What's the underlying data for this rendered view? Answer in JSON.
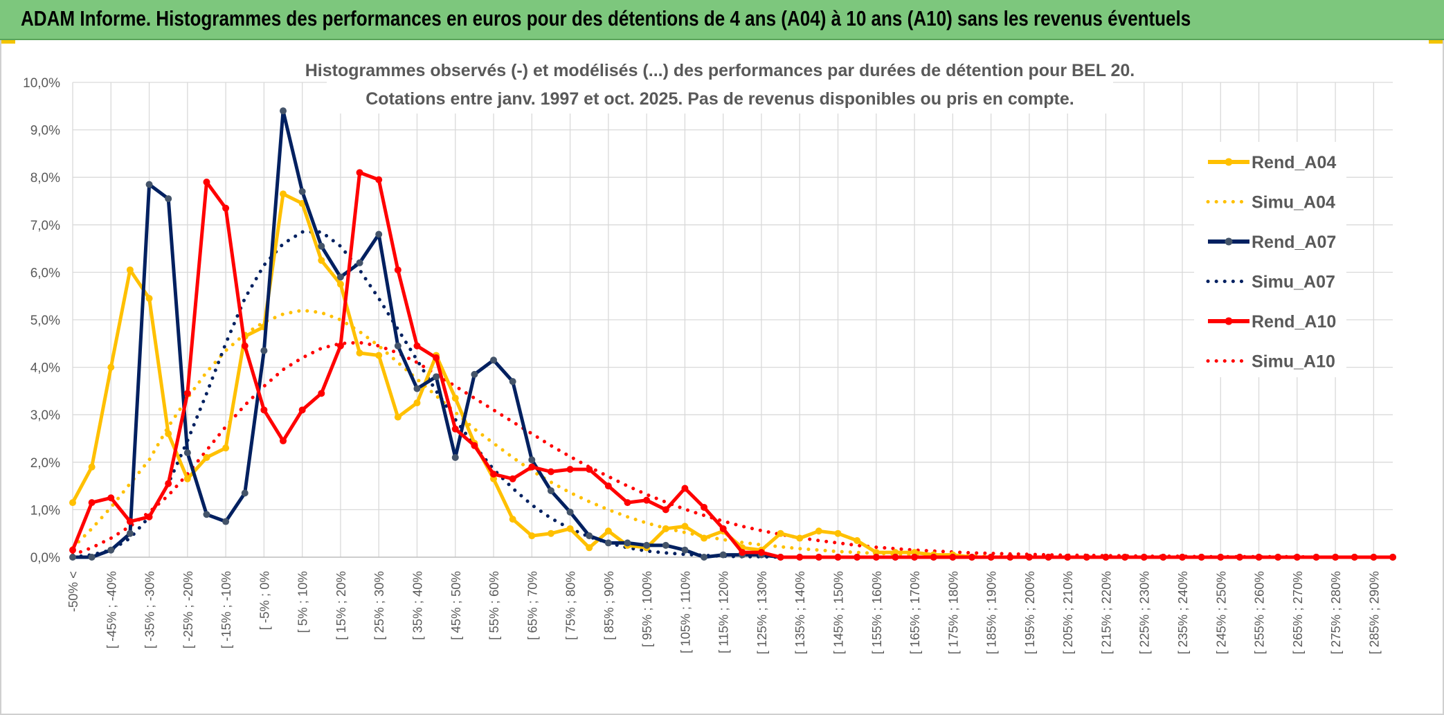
{
  "header": {
    "title": "ADAM Informe. Histogrammes des performances en euros pour des détentions de 4 ans (A04) à 10 ans (A10) sans les revenus éventuels"
  },
  "colors": {
    "banner": "#7dc77d",
    "A04": "#ffc000",
    "A07": "#002060",
    "A10": "#ff0000",
    "grid": "#d9d9d9",
    "text": "#595959"
  },
  "chart_data": {
    "type": "line",
    "title_lines": [
      "Histogrammes observés (-) et modélisés (...) des performances par durées de détention pour BEL 20.",
      "Cotations entre janv. 1997 et oct. 2025. Pas de revenus disponibles ou pris en compte."
    ],
    "y_ticks": [
      "0,0%",
      "1,0%",
      "2,0%",
      "3,0%",
      "4,0%",
      "5,0%",
      "6,0%",
      "7,0%",
      "8,0%",
      "9,0%",
      "10,0%"
    ],
    "ylim": [
      0,
      10
    ],
    "yunit": "%",
    "grid": true,
    "legend_position": "right",
    "x_labels": [
      "-50% <",
      "[ -45% ; -40%",
      "[ -35% ; -30%",
      "[ -25% ; -20%",
      "[ -15% ; -10%",
      "[ -5% ; 0%",
      "[ 5% ; 10%",
      "[ 15% ; 20%",
      "[ 25% ; 30%",
      "[ 35% ; 40%",
      "[ 45% ; 50%",
      "[ 55% ; 60%",
      "[ 65% ; 70%",
      "[ 75% ; 80%",
      "[ 85% ; 90%",
      "[ 95% ; 100%",
      "[ 105% ; 110%",
      "[ 115% ; 120%",
      "[ 125% ; 130%",
      "[ 135% ; 140%",
      "[ 145% ; 150%",
      "[ 155% ; 160%",
      "[ 165% ; 170%",
      "[ 175% ; 180%",
      "[ 185% ; 190%",
      "[ 195% ; 200%",
      "[ 205% ; 210%",
      "[ 215% ; 220%",
      "[ 225% ; 230%",
      "[ 235% ; 240%",
      "[ 245% ; 250%",
      "[ 255% ; 260%",
      "[ 265% ; 270%",
      "[ 275% ; 280%",
      "[ 285% ; 290%"
    ],
    "series": [
      {
        "name": "Rend_A04",
        "style": "solid",
        "color": "#ffc000",
        "values": [
          1.15,
          1.9,
          4.0,
          6.05,
          5.45,
          2.6,
          1.65,
          2.1,
          2.3,
          4.65,
          4.85,
          7.65,
          7.45,
          6.25,
          5.75,
          4.3,
          4.25,
          2.95,
          3.25,
          4.25,
          3.35,
          2.4,
          1.65,
          0.8,
          0.45,
          0.5,
          0.6,
          0.2,
          0.55,
          0.25,
          0.2,
          0.6,
          0.65,
          0.4,
          0.55,
          0.2,
          0.15,
          0.5,
          0.4,
          0.55,
          0.5,
          0.35,
          0.1,
          0.1,
          0.1,
          0.05,
          0.05,
          0.0,
          0.0,
          0.0,
          0.0,
          0.0,
          0.0,
          0.0,
          0.0,
          0.0,
          0.0,
          0.0,
          0.0,
          0.0,
          0.0,
          0.0,
          0.0,
          0.0,
          0.0,
          0.0,
          0.0,
          0.0,
          0.0,
          0.0
        ]
      },
      {
        "name": "Simu_A04",
        "style": "dotted",
        "color": "#ffc000",
        "values": [
          0.2,
          0.6,
          1.05,
          1.55,
          2.05,
          2.75,
          3.35,
          3.9,
          4.35,
          4.7,
          4.95,
          5.12,
          5.2,
          5.15,
          5.0,
          4.75,
          4.45,
          4.1,
          3.75,
          3.4,
          3.05,
          2.7,
          2.4,
          2.1,
          1.82,
          1.58,
          1.36,
          1.17,
          1.0,
          0.85,
          0.72,
          0.61,
          0.52,
          0.44,
          0.37,
          0.31,
          0.26,
          0.22,
          0.18,
          0.15,
          0.12,
          0.1,
          0.08,
          0.07,
          0.05,
          0.04,
          0.03,
          0.03,
          0.02,
          0.02,
          0.01,
          0.01,
          0.01,
          0.01,
          0.0,
          0.0,
          0.0,
          0.0,
          0.0,
          0.0,
          0.0,
          0.0,
          0.0,
          0.0,
          0.0,
          0.0,
          0.0,
          0.0,
          0.0,
          0.0
        ]
      },
      {
        "name": "Rend_A07",
        "style": "solid",
        "color": "#002060",
        "values": [
          0.0,
          0.0,
          0.15,
          0.5,
          7.85,
          7.55,
          2.2,
          0.9,
          0.75,
          1.35,
          4.35,
          9.4,
          7.7,
          6.55,
          5.9,
          6.2,
          6.8,
          4.45,
          3.55,
          3.8,
          2.1,
          3.85,
          4.15,
          3.7,
          2.05,
          1.4,
          0.95,
          0.45,
          0.3,
          0.3,
          0.25,
          0.25,
          0.15,
          0.0,
          0.05,
          0.05,
          0.05,
          0.0,
          0.0,
          0.0,
          0.0,
          0.0,
          0.0,
          0.0,
          0.0,
          0.0,
          0.0,
          0.0,
          0.0,
          0.0,
          0.0,
          0.0,
          0.0,
          0.0,
          0.0,
          0.0,
          0.0,
          0.0,
          0.0,
          0.0,
          0.0,
          0.0,
          0.0,
          0.0,
          0.0,
          0.0,
          0.0,
          0.0,
          0.0,
          0.0
        ]
      },
      {
        "name": "Simu_A07",
        "style": "dotted",
        "color": "#002060",
        "values": [
          0.0,
          0.05,
          0.15,
          0.4,
          0.85,
          1.55,
          2.45,
          3.45,
          4.5,
          5.45,
          6.15,
          6.6,
          6.85,
          6.85,
          6.55,
          6.05,
          5.45,
          4.8,
          4.15,
          3.5,
          2.9,
          2.35,
          1.85,
          1.45,
          1.1,
          0.82,
          0.6,
          0.43,
          0.3,
          0.2,
          0.13,
          0.09,
          0.06,
          0.04,
          0.02,
          0.01,
          0.01,
          0.0,
          0.0,
          0.0,
          0.0,
          0.0,
          0.0,
          0.0,
          0.0,
          0.0,
          0.0,
          0.0,
          0.0,
          0.0,
          0.0,
          0.0,
          0.0,
          0.0,
          0.0,
          0.0,
          0.0,
          0.0,
          0.0,
          0.0,
          0.0,
          0.0,
          0.0,
          0.0,
          0.0,
          0.0,
          0.0,
          0.0,
          0.0,
          0.0
        ]
      },
      {
        "name": "Rend_A10",
        "style": "solid",
        "color": "#ff0000",
        "values": [
          0.15,
          1.15,
          1.25,
          0.75,
          0.85,
          1.55,
          3.45,
          7.9,
          7.35,
          4.45,
          3.1,
          2.45,
          3.1,
          3.45,
          4.45,
          8.1,
          7.95,
          6.05,
          4.45,
          4.2,
          2.7,
          2.35,
          1.75,
          1.65,
          1.9,
          1.8,
          1.85,
          1.85,
          1.5,
          1.15,
          1.2,
          1.0,
          1.45,
          1.05,
          0.6,
          0.1,
          0.1,
          0.0,
          0.0,
          0.0,
          0.0,
          0.0,
          0.0,
          0.0,
          0.0,
          0.0,
          0.0,
          0.0,
          0.0,
          0.0,
          0.0,
          0.0,
          0.0,
          0.0,
          0.0,
          0.0,
          0.0,
          0.0,
          0.0,
          0.0,
          0.0,
          0.0,
          0.0,
          0.0,
          0.0,
          0.0,
          0.0,
          0.0,
          0.0,
          0.0
        ]
      },
      {
        "name": "Simu_A10",
        "style": "dotted",
        "color": "#ff0000",
        "values": [
          0.05,
          0.2,
          0.4,
          0.65,
          0.95,
          1.3,
          1.75,
          2.25,
          2.75,
          3.2,
          3.6,
          3.95,
          4.2,
          4.4,
          4.5,
          4.52,
          4.45,
          4.3,
          4.1,
          3.85,
          3.6,
          3.35,
          3.1,
          2.85,
          2.6,
          2.35,
          2.12,
          1.9,
          1.7,
          1.5,
          1.32,
          1.16,
          1.01,
          0.88,
          0.76,
          0.65,
          0.56,
          0.48,
          0.41,
          0.35,
          0.3,
          0.25,
          0.21,
          0.18,
          0.15,
          0.13,
          0.11,
          0.09,
          0.08,
          0.07,
          0.06,
          0.05,
          0.04,
          0.04,
          0.03,
          0.03,
          0.02,
          0.02,
          0.02,
          0.01,
          0.01,
          0.01,
          0.01,
          0.01,
          0.01,
          0.0,
          0.0,
          0.0,
          0.0,
          0.0
        ]
      }
    ]
  }
}
